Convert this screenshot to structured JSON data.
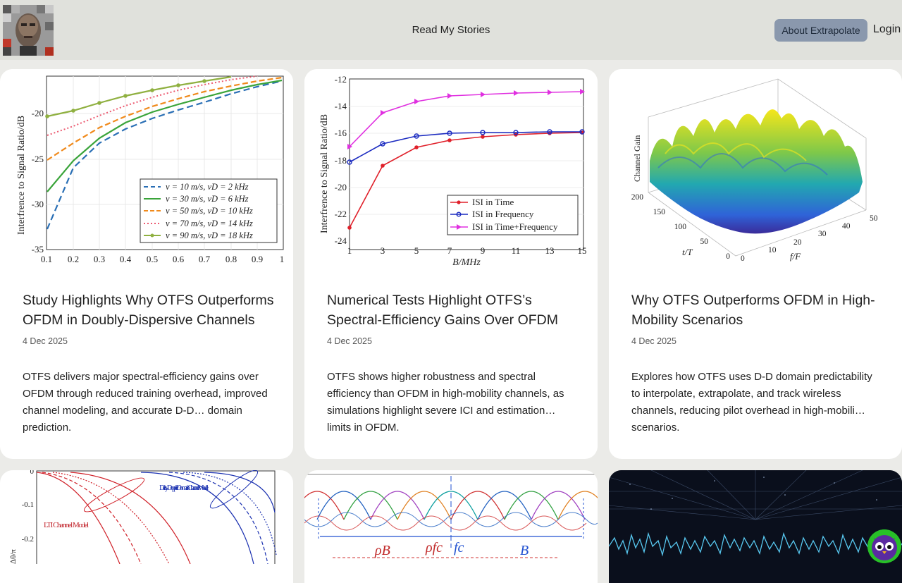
{
  "header": {
    "nav_center": "Read My Stories",
    "about_label": "About Extrapolate",
    "login_label": "Login"
  },
  "cards": [
    {
      "title": "Study Highlights Why OTFS Outperforms OFDM in Doubly-Dispersive Channels",
      "date": "4 Dec 2025",
      "description": "OTFS delivers major spectral-efficiency gains over OFDM through reduced training overhead, improved channel modeling, and accurate D-D… domain prediction.",
      "figure": {
        "ylabel": "Interfrence to Signal Ratio/dB",
        "y_ticks": [
          "-20",
          "-25",
          "-30",
          "-35"
        ],
        "x_ticks": [
          "0.1",
          "0.2",
          "0.3",
          "0.4",
          "0.5",
          "0.6",
          "0.7",
          "0.8",
          "0.9",
          "1"
        ],
        "legend": [
          "v = 10 m/s, νD = 2 kHz",
          "v = 30 m/s, νD = 6 kHz",
          "v = 50 m/s, νD = 10 kHz",
          "v = 70 m/s, νD = 14 kHz",
          "v = 90 m/s, νD = 18 kHz"
        ],
        "colors": [
          "#2a6fb5",
          "#3aa43a",
          "#f08a1c",
          "#ec5a70",
          "#8fb040"
        ]
      }
    },
    {
      "title": "Numerical Tests Highlight OTFS’s Spectral-Efficiency Gains Over OFDM",
      "date": "4 Dec 2025",
      "description": "OTFS shows higher robustness and spectral efficiency than OFDM in high-mobility channels, as simulations highlight severe ICI and estimation… limits in OFDM.",
      "figure": {
        "ylabel": "Interfrence to Signal Ratio/dB",
        "xlabel": "B/MHz",
        "y_ticks": [
          "-12",
          "-14",
          "-16",
          "-18",
          "-20",
          "-22",
          "-24"
        ],
        "x_ticks": [
          "1",
          "3",
          "5",
          "7",
          "9",
          "11",
          "13",
          "15"
        ],
        "legend": [
          "ISI in Time",
          "ISI in Frequency",
          "ISI in Time+Frequency"
        ],
        "colors": [
          "#e0202a",
          "#1a2ac0",
          "#e030e0"
        ]
      }
    },
    {
      "title": "Why OTFS Outperforms OFDM in High-Mobility Scenarios",
      "date": "4 Dec 2025",
      "description": "Explores how OTFS uses D-D domain predictability to interpolate, extrapolate, and track wireless channels, reducing pilot overhead in high-mobili… scenarios.",
      "figure": {
        "zlabel": "Channel Gain",
        "t_label": "t/T",
        "f_label": "f/F",
        "t_ticks": [
          "200",
          "150",
          "100",
          "50",
          "0"
        ],
        "f_ticks": [
          "0",
          "10",
          "20",
          "30",
          "40",
          "50"
        ]
      }
    }
  ],
  "bottom_cards": [
    {
      "figure": {
        "y_ticks": [
          "0",
          "-0.1",
          "-0.2"
        ],
        "ylabel": "Δθ/π",
        "label_red": "LTI Channel Model",
        "label_blue": "Delay-Doppler Domain Channel Model"
      }
    },
    {
      "figure": {
        "labels": [
          "ρB",
          "ρfc",
          "fc",
          "B"
        ]
      }
    },
    {
      "figure": {}
    }
  ]
}
